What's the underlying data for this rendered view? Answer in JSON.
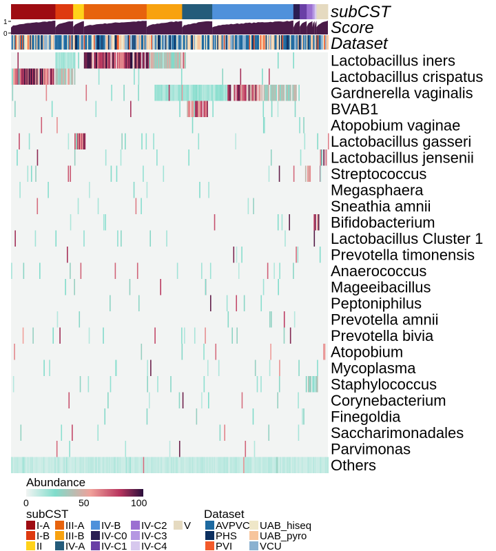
{
  "chart_data": {
    "type": "heatmap",
    "annotation_rows": [
      {
        "name": "subCST"
      },
      {
        "name": "Score",
        "ticks": [
          "1",
          "0"
        ]
      },
      {
        "name": "Dataset"
      }
    ],
    "subcst_blocks": [
      {
        "label": "I-A",
        "fraction": 0.14,
        "color": "#9E0C12"
      },
      {
        "label": "I-B",
        "fraction": 0.056,
        "color": "#DE3A10"
      },
      {
        "label": "II",
        "fraction": 0.034,
        "color": "#FFD21A"
      },
      {
        "label": "III-A",
        "fraction": 0.198,
        "color": "#E7630D"
      },
      {
        "label": "III-B",
        "fraction": 0.112,
        "color": "#F8A20F"
      },
      {
        "label": "IV-A",
        "fraction": 0.095,
        "color": "#245B7A"
      },
      {
        "label": "IV-B",
        "fraction": 0.256,
        "color": "#4F91DB"
      },
      {
        "label": "IV-C0",
        "fraction": 0.02,
        "color": "#2B1E52"
      },
      {
        "label": "IV-C1",
        "fraction": 0.022,
        "color": "#6A3FA6"
      },
      {
        "label": "IV-C2",
        "fraction": 0.018,
        "color": "#9B6FD1"
      },
      {
        "label": "IV-C3",
        "fraction": 0.007,
        "color": "#B597E2"
      },
      {
        "label": "IV-C4",
        "fraction": 0.006,
        "color": "#D7C8EE"
      },
      {
        "label": "V",
        "fraction": 0.036,
        "color": "#E5DAC0"
      }
    ],
    "taxa": [
      "Lactobacillus iners",
      "Lactobacillus crispatus",
      "Gardnerella vaginalis",
      "BVAB1",
      "Atopobium vaginae",
      "Lactobacillus gasseri",
      "Lactobacillus jensenii",
      "Streptococcus",
      "Megasphaera",
      "Sneathia amnii",
      "Bifidobacterium",
      "Lactobacillus Cluster 1",
      "Prevotella timonensis",
      "Anaerococcus",
      "Mageeibacillus",
      "Peptoniphilus",
      "Prevotella amnii",
      "Prevotella bivia",
      "Atopobium",
      "Mycoplasma",
      "Staphylococcus",
      "Corynebacterium",
      "Finegoldia",
      "Saccharimonadales",
      "Parvimonas",
      "Others"
    ],
    "dominant_regions": [
      {
        "taxon": "Lactobacillus iners",
        "from": 0.23,
        "to": 0.44,
        "level": 0.92
      },
      {
        "taxon": "Lactobacillus iners",
        "from": 0.44,
        "to": 0.55,
        "level": 0.45
      },
      {
        "taxon": "Lactobacillus iners",
        "from": 0.14,
        "to": 0.2,
        "level": 0.18
      },
      {
        "taxon": "Lactobacillus crispatus",
        "from": 0.0,
        "to": 0.14,
        "level": 0.93
      },
      {
        "taxon": "Lactobacillus crispatus",
        "from": 0.14,
        "to": 0.2,
        "level": 0.55
      },
      {
        "taxon": "Gardnerella vaginalis",
        "from": 0.68,
        "to": 0.79,
        "level": 0.82
      },
      {
        "taxon": "Gardnerella vaginalis",
        "from": 0.79,
        "to": 0.9,
        "level": 0.42
      },
      {
        "taxon": "Gardnerella vaginalis",
        "from": 0.46,
        "to": 0.68,
        "level": 0.2
      },
      {
        "taxon": "BVAB1",
        "from": 0.555,
        "to": 0.62,
        "level": 0.75
      },
      {
        "taxon": "Lactobacillus gasseri",
        "from": 0.2,
        "to": 0.232,
        "level": 0.8
      },
      {
        "taxon": "Lactobacillus jensenii",
        "from": 0.975,
        "to": 0.995,
        "level": 0.9
      },
      {
        "taxon": "Streptococcus",
        "from": 0.928,
        "to": 0.945,
        "level": 0.6
      },
      {
        "taxon": "Bifidobacterium",
        "from": 0.955,
        "to": 0.97,
        "level": 0.85
      },
      {
        "taxon": "Staphylococcus",
        "from": 0.93,
        "to": 0.965,
        "level": 0.35
      },
      {
        "taxon": "Others",
        "from": 0.0,
        "to": 1.0,
        "level": 0.12
      }
    ],
    "color_scale": {
      "title": "Abundance",
      "ticks": [
        "0",
        "50",
        "100"
      ],
      "range": [
        0,
        100
      ],
      "stops": [
        "#F2F4F3",
        "#7FDCCB",
        "#F0A09A",
        "#B8355E",
        "#2A0E3B"
      ]
    },
    "dataset_legend": {
      "title": "Dataset",
      "items": [
        {
          "label": "AVPVC",
          "color": "#1E6AA0"
        },
        {
          "label": "PHS",
          "color": "#0C2F5F"
        },
        {
          "label": "PVI",
          "color": "#F25A2A"
        },
        {
          "label": "UAB_hiseq",
          "color": "#EFE7C8"
        },
        {
          "label": "UAB_pyro",
          "color": "#F7C59D"
        },
        {
          "label": "VCU",
          "color": "#8AB1D0"
        }
      ]
    },
    "subcst_legend_title": "subCST",
    "grid": false
  }
}
